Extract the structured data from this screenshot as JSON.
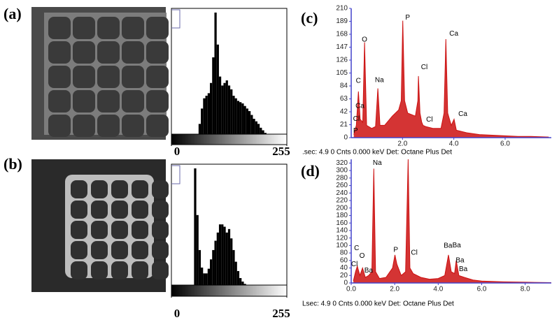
{
  "chart_data": [
    {
      "type": "histogram",
      "panel": "(a)",
      "color": "#000000",
      "xlim": [
        0,
        255
      ],
      "xticks": [
        0,
        255
      ],
      "bins": [
        0,
        5,
        10,
        15,
        20,
        25,
        30,
        35,
        40,
        45,
        50,
        55,
        60,
        65,
        70,
        75,
        80,
        85,
        90,
        95,
        100,
        105,
        110,
        115,
        120,
        125,
        130,
        135,
        140,
        145,
        150,
        155,
        160,
        165,
        170,
        175,
        180,
        185,
        190,
        195,
        200,
        205,
        210,
        215,
        220,
        225,
        230,
        235,
        240,
        245,
        250,
        255
      ],
      "values": [
        0,
        0,
        0,
        0,
        0,
        0,
        0,
        0,
        0,
        0,
        0,
        0,
        8,
        20,
        28,
        30,
        32,
        40,
        60,
        95,
        70,
        45,
        38,
        40,
        42,
        38,
        35,
        30,
        28,
        26,
        25,
        24,
        22,
        20,
        18,
        15,
        12,
        10,
        8,
        5,
        3,
        1,
        0,
        0,
        0,
        0,
        0,
        0,
        0,
        0,
        0
      ]
    },
    {
      "type": "histogram",
      "panel": "(b)",
      "color": "#000000",
      "xlim": [
        0,
        255
      ],
      "xticks": [
        0,
        255
      ],
      "bins": [
        0,
        5,
        10,
        15,
        20,
        25,
        30,
        35,
        40,
        45,
        50,
        55,
        60,
        65,
        70,
        75,
        80,
        85,
        90,
        95,
        100,
        105,
        110,
        115,
        120,
        125,
        130,
        135,
        140,
        145,
        150,
        155,
        160,
        165,
        170,
        175,
        180,
        185,
        190,
        195,
        200,
        205,
        210,
        215,
        220,
        225,
        230,
        235,
        240,
        245,
        250,
        255
      ],
      "values": [
        0,
        0,
        0,
        0,
        0,
        0,
        0,
        0,
        0,
        0,
        100,
        60,
        30,
        15,
        10,
        10,
        14,
        22,
        30,
        38,
        45,
        52,
        52,
        50,
        45,
        48,
        40,
        30,
        20,
        12,
        6,
        3,
        1,
        0,
        0,
        0,
        0,
        0,
        0,
        0,
        0,
        0,
        0,
        0,
        0,
        0,
        0,
        0,
        0,
        0,
        0
      ]
    },
    {
      "type": "line",
      "panel": "(c)",
      "caption": ".sec: 4.9 0 Cnts  0.000 keV  Det: Octane Plus Det",
      "xlim": [
        0,
        7.8
      ],
      "ylim": [
        0,
        210
      ],
      "xticks": [
        {
          "value": 2,
          "label": "2.0"
        },
        {
          "value": 4,
          "label": "4.0"
        },
        {
          "value": 6,
          "label": "6.0"
        }
      ],
      "yticks": [
        0,
        21,
        42,
        63,
        84,
        105,
        126,
        147,
        168,
        189,
        210
      ],
      "x": [
        0.1,
        0.2,
        0.28,
        0.35,
        0.45,
        0.52,
        0.6,
        0.8,
        0.95,
        1.04,
        1.12,
        1.3,
        1.6,
        1.85,
        1.95,
        2.01,
        2.08,
        2.2,
        2.5,
        2.6,
        2.62,
        2.68,
        2.75,
        2.8,
        2.9,
        3.2,
        3.5,
        3.62,
        3.69,
        3.76,
        3.9,
        4.01,
        4.1,
        4.5,
        5,
        5.5,
        6,
        6.5,
        7,
        7.7
      ],
      "series": [
        {
          "color": "#cc1111",
          "values": [
            5,
            20,
            75,
            30,
            25,
            155,
            20,
            15,
            18,
            80,
            20,
            20,
            35,
            45,
            60,
            190,
            60,
            40,
            35,
            60,
            100,
            40,
            25,
            20,
            18,
            15,
            15,
            40,
            160,
            40,
            20,
            30,
            12,
            8,
            5,
            4,
            3,
            2,
            2,
            1
          ]
        }
      ],
      "annotations": [
        {
          "text": "O",
          "x": 0.52,
          "y": 159
        },
        {
          "text": "C",
          "x": 0.28,
          "y": 92
        },
        {
          "text": "Ca",
          "x": 0.34,
          "y": 51
        },
        {
          "text": "Cl",
          "x": 0.2,
          "y": 30
        },
        {
          "text": "P",
          "x": 0.17,
          "y": 11
        },
        {
          "text": "Na",
          "x": 1.1,
          "y": 93
        },
        {
          "text": "P",
          "x": 2.2,
          "y": 195
        },
        {
          "text": "Cl",
          "x": 2.85,
          "y": 114
        },
        {
          "text": "Cl",
          "x": 3.05,
          "y": 29
        },
        {
          "text": "Ca",
          "x": 4.0,
          "y": 169
        },
        {
          "text": "Ca",
          "x": 4.35,
          "y": 38
        }
      ]
    },
    {
      "type": "line",
      "panel": "(d)",
      "caption": "Lsec: 4.9 0 Cnts  0.000 keV  Det: Octane Plus Det",
      "xlim": [
        0,
        9.2
      ],
      "ylim": [
        0,
        330
      ],
      "xticks": [
        {
          "value": 0,
          "label": "0.0"
        },
        {
          "value": 2,
          "label": "2.0"
        },
        {
          "value": 4,
          "label": "4.0"
        },
        {
          "value": 6,
          "label": "6.0"
        },
        {
          "value": 8,
          "label": "8.0"
        }
      ],
      "yticks": [
        0,
        20,
        40,
        60,
        80,
        100,
        120,
        140,
        160,
        180,
        200,
        220,
        240,
        260,
        280,
        300,
        320
      ],
      "x": [
        0.1,
        0.2,
        0.28,
        0.4,
        0.52,
        0.65,
        0.8,
        0.95,
        1.04,
        1.12,
        1.3,
        1.6,
        1.9,
        2.01,
        2.1,
        2.3,
        2.5,
        2.62,
        2.7,
        2.85,
        3.2,
        3.6,
        4.0,
        4.3,
        4.47,
        4.6,
        4.75,
        4.83,
        4.95,
        5.2,
        5.6,
        6,
        7,
        8,
        9.2
      ],
      "series": [
        {
          "color": "#cc1111",
          "values": [
            5,
            30,
            45,
            20,
            40,
            15,
            20,
            30,
            305,
            30,
            12,
            15,
            40,
            75,
            50,
            20,
            30,
            330,
            40,
            25,
            15,
            10,
            12,
            20,
            75,
            30,
            25,
            60,
            20,
            15,
            8,
            5,
            3,
            2,
            1
          ]
        }
      ],
      "annotations": [
        {
          "text": "Na",
          "x": 1.2,
          "y": 320
        },
        {
          "text": "C",
          "x": 0.25,
          "y": 93
        },
        {
          "text": "O",
          "x": 0.5,
          "y": 72
        },
        {
          "text": "Cl",
          "x": 0.15,
          "y": 50
        },
        {
          "text": "Ba",
          "x": 0.8,
          "y": 33
        },
        {
          "text": "P",
          "x": 2.05,
          "y": 88
        },
        {
          "text": "Cl",
          "x": 2.9,
          "y": 80
        },
        {
          "text": "Ba",
          "x": 4.45,
          "y": 99
        },
        {
          "text": "Ba",
          "x": 4.85,
          "y": 100
        },
        {
          "text": "Ba",
          "x": 5.0,
          "y": 60
        },
        {
          "text": "Ba",
          "x": 5.15,
          "y": 37
        }
      ]
    }
  ]
}
